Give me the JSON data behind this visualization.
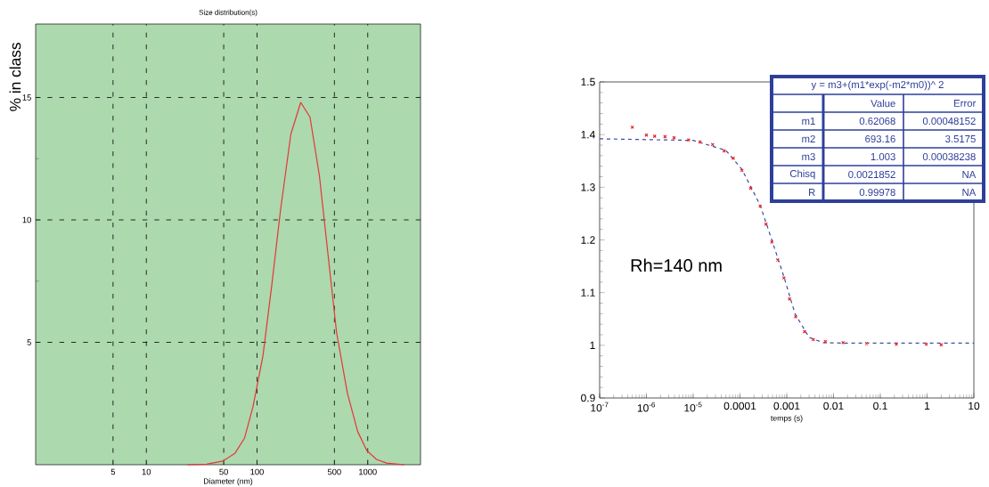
{
  "chart_data": [
    {
      "type": "line",
      "title": "Size distribution(s)",
      "xlabel": "Diameter (nm)",
      "ylabel": "% in class",
      "log": "x",
      "grid": true,
      "xlim": [
        1,
        3000
      ],
      "ylim": [
        0,
        18
      ],
      "xticks": [
        5,
        10,
        50,
        100,
        500,
        1000
      ],
      "yticks": [
        5,
        10,
        15
      ],
      "series": [
        {
          "color": "#e8343a",
          "line_style": "solid",
          "x": [
            23.5,
            35,
            49,
            63,
            77,
            92,
            113,
            136,
            163,
            202,
            248,
            301,
            366,
            435,
            523,
            655,
            812,
            980,
            1200,
            1480,
            2140
          ],
          "values": [
            0,
            0.02,
            0.15,
            0.46,
            1.08,
            2.38,
            4.44,
            7.35,
            10.4,
            13.5,
            14.8,
            14.2,
            11.8,
            8.7,
            5.4,
            2.92,
            1.35,
            0.58,
            0.22,
            0.07,
            0
          ]
        }
      ]
    },
    {
      "type": "scatter",
      "xlabel": "temps (s)",
      "log": "x",
      "xlim": [
        1e-07,
        10
      ],
      "ylim": [
        0.9,
        1.5
      ],
      "xticks": [
        {
          "value": 1e-07,
          "label": "10$^{-7}$"
        },
        {
          "value": 1e-06,
          "label": "10$^{-6}$"
        },
        {
          "value": 1e-05,
          "label": "10$^{-5}$"
        },
        0.0001,
        0.001,
        0.01,
        0.1,
        1,
        10
      ],
      "yticks": [
        0.9,
        1,
        1.1,
        1.2,
        1.3,
        1.4,
        1.5
      ],
      "series": [
        {
          "type": "scatter",
          "color": "#e8252a",
          "marker": "cross",
          "x": [
            5e-07,
            1e-06,
            1.5e-06,
            2.5e-06,
            3.9e-06,
            8e-06,
            1.4e-05,
            2.6e-05,
            4.6e-05,
            7.2e-05,
            0.00011,
            0.00017,
            0.00027,
            0.00036,
            0.00048,
            0.00064,
            0.00087,
            0.00115,
            0.00155,
            0.0024,
            0.0037,
            0.0067,
            0.016,
            0.051,
            0.22,
            0.96,
            2.0
          ],
          "values": [
            1.414,
            1.399,
            1.397,
            1.396,
            1.394,
            1.39,
            1.386,
            1.381,
            1.369,
            1.355,
            1.332,
            1.298,
            1.264,
            1.23,
            1.196,
            1.162,
            1.128,
            1.088,
            1.054,
            1.026,
            1.011,
            1.007,
            1.005,
            1.003,
            1.002,
            1.002,
            1.001
          ]
        },
        {
          "type": "line",
          "color": "#3a4fa0",
          "line_style": "dashed",
          "x": [
            1e-07,
            1e-05,
            5e-05,
            0.00011,
            0.00027,
            0.00048,
            0.00087,
            0.0015,
            0.003,
            0.006,
            0.02,
            10
          ],
          "values": [
            1.392,
            1.389,
            1.37,
            1.334,
            1.266,
            1.2,
            1.13,
            1.06,
            1.015,
            1.005,
            1.004,
            1.004
          ]
        }
      ],
      "annotations": [
        "Rh=140 nm",
        "y = m3+(m1*exp(-m2*m0))^ 2",
        "Value",
        "Error",
        "m1",
        "0.62068",
        "0.00048152",
        "m2",
        "693.16",
        "3.5175",
        "m3",
        "1.003",
        "0.00038238",
        "Chisq",
        "0.0021852",
        "NA",
        "R",
        "0.99978",
        "NA"
      ]
    }
  ]
}
